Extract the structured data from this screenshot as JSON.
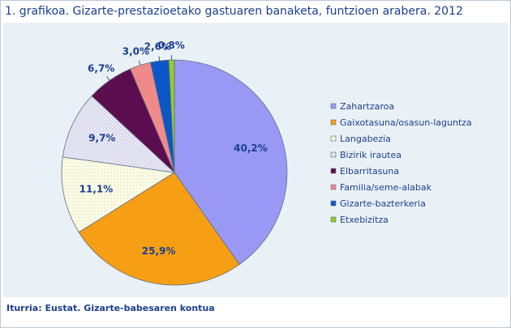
{
  "title": "1. grafikoa. Gizarte-prestazioetako gastuaren banaketa, funtzioen arabera. 2012",
  "source": "Iturria: Eustat. Gizarte-babesaren kontua",
  "chart_data": {
    "type": "pie",
    "title": "1. grafikoa. Gizarte-prestazioetako gastuaren banaketa, funtzioen arabera. 2012",
    "legend_position": "right",
    "categories": [
      "Zahartzaroa",
      "Gaixotasuna/osasun-laguntza",
      "Langabezia",
      "Bizirik irautea",
      "Elbarritasuna",
      "Familia/seme-alabak",
      "Gizarte-bazterkeria",
      "Etxebizitza"
    ],
    "values": [
      40.2,
      25.9,
      11.1,
      9.7,
      6.7,
      3.0,
      2.6,
      0.8
    ],
    "labels": [
      "40,2%",
      "25,9%",
      "11,1%",
      "9,7%",
      "6,7%",
      "3,0%",
      "2,6%",
      "0,8%"
    ],
    "colors": [
      "#9999f5",
      "#f79f14",
      "#fbfbe6",
      "#ececf8",
      "#5c0d50",
      "#f08a8a",
      "#0b56c8",
      "#93cd25"
    ]
  }
}
